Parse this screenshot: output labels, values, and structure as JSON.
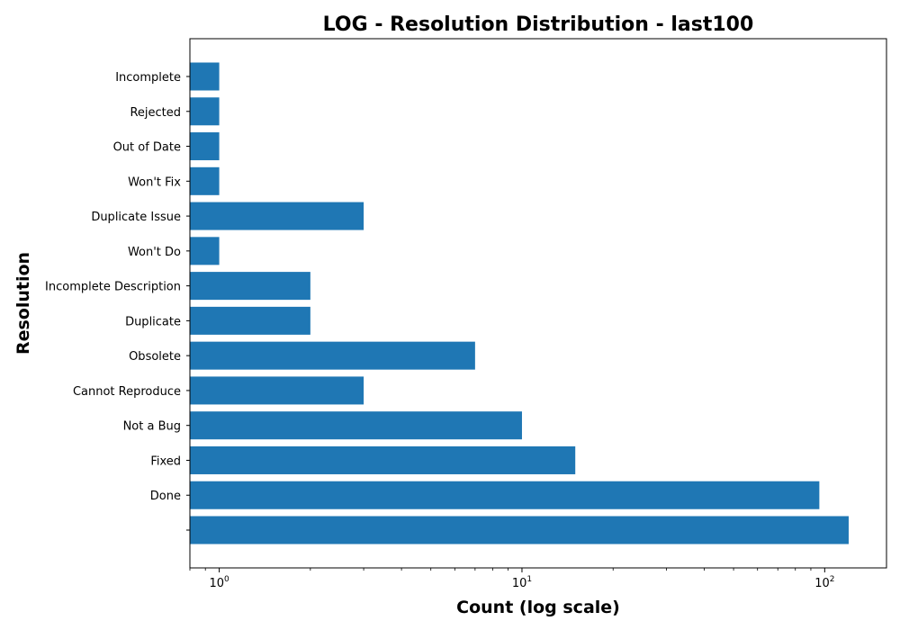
{
  "chart_data": {
    "type": "bar",
    "orientation": "horizontal",
    "title": "LOG - Resolution Distribution - last100",
    "xlabel": "Count (log scale)",
    "ylabel": "Resolution",
    "xscale": "log",
    "xlim": [
      0.8,
      160
    ],
    "x_ticks": [
      {
        "value": 1,
        "base": "10",
        "exp": "0"
      },
      {
        "value": 10,
        "base": "10",
        "exp": "1"
      },
      {
        "value": 100,
        "base": "10",
        "exp": "2"
      }
    ],
    "categories": [
      "",
      "Done",
      "Fixed",
      "Not a Bug",
      "Cannot Reproduce",
      "Obsolete",
      "Duplicate",
      "Incomplete Description",
      "Won't Do",
      "Duplicate Issue",
      "Won't Fix",
      "Out of Date",
      "Rejected",
      "Incomplete"
    ],
    "values": [
      120,
      96,
      15,
      10,
      3,
      7,
      2,
      2,
      1,
      3,
      1,
      1,
      1,
      1
    ],
    "bar_color": "#1f77b4",
    "grid": false,
    "legend": "none"
  }
}
